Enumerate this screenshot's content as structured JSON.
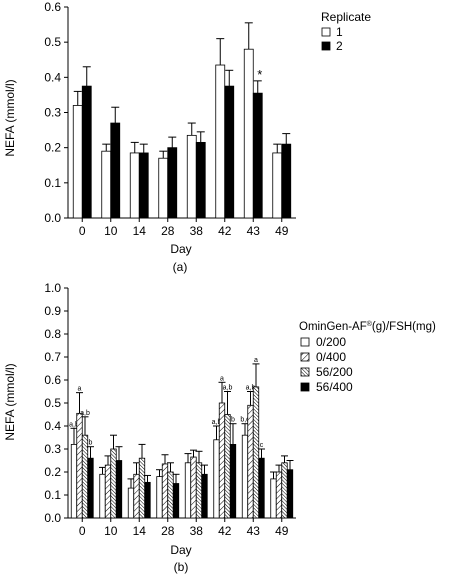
{
  "chart_data": [
    {
      "type": "bar",
      "ylabel": "NEFA (mmol/l)",
      "xlabel": "Day",
      "caption": "(a)",
      "ylim": [
        0,
        0.6
      ],
      "yticks": [
        "0.0",
        "0.1",
        "0.2",
        "0.3",
        "0.4",
        "0.5",
        "0.6"
      ],
      "categories": [
        "0",
        "10",
        "14",
        "28",
        "38",
        "42",
        "43",
        "49"
      ],
      "legend": {
        "title": "Replicate",
        "placement": "right"
      },
      "series": [
        {
          "name": "1",
          "fill": "#ffffff",
          "values": [
            0.32,
            0.19,
            0.185,
            0.17,
            0.235,
            0.435,
            0.48,
            0.185
          ],
          "errors": [
            0.04,
            0.02,
            0.03,
            0.02,
            0.035,
            0.075,
            0.075,
            0.025
          ]
        },
        {
          "name": "2",
          "fill": "#000000",
          "values": [
            0.375,
            0.27,
            0.185,
            0.2,
            0.215,
            0.375,
            0.355,
            0.21
          ],
          "errors": [
            0.055,
            0.045,
            0.025,
            0.03,
            0.03,
            0.045,
            0.035,
            0.03
          ]
        }
      ],
      "annotations": [
        {
          "category": "43",
          "series": 1,
          "text": "*"
        }
      ]
    },
    {
      "type": "bar",
      "ylabel": "NEFA (mmol/l)",
      "xlabel": "Day",
      "caption": "(b)",
      "ylim": [
        0,
        1.0
      ],
      "yticks": [
        "0.0",
        "0.1",
        "0.2",
        "0.3",
        "0.4",
        "0.5",
        "0.6",
        "0.7",
        "0.8",
        "0.9",
        "1.0"
      ],
      "categories": [
        "0",
        "10",
        "14",
        "28",
        "38",
        "42",
        "43",
        "49"
      ],
      "legend": {
        "title": "OminGen-AF",
        "title_sup": "®",
        "title_rest": "(g)/FSH(mg)",
        "placement": "right"
      },
      "series": [
        {
          "name": "0/200",
          "pattern": "white",
          "values": [
            0.32,
            0.19,
            0.13,
            0.18,
            0.24,
            0.34,
            0.36,
            0.17
          ],
          "errors": [
            0.07,
            0.03,
            0.04,
            0.03,
            0.04,
            0.06,
            0.05,
            0.03
          ]
        },
        {
          "name": "0/400",
          "pattern": "hatch-wide",
          "values": [
            0.455,
            0.23,
            0.19,
            0.235,
            0.265,
            0.5,
            0.49,
            0.2
          ],
          "errors": [
            0.09,
            0.04,
            0.05,
            0.04,
            0.03,
            0.09,
            0.06,
            0.03
          ]
        },
        {
          "name": "56/200",
          "pattern": "hatch-dense",
          "values": [
            0.36,
            0.3,
            0.26,
            0.2,
            0.24,
            0.45,
            0.57,
            0.24
          ],
          "errors": [
            0.08,
            0.06,
            0.06,
            0.04,
            0.05,
            0.1,
            0.1,
            0.03
          ]
        },
        {
          "name": "56/400",
          "pattern": "black",
          "values": [
            0.26,
            0.25,
            0.155,
            0.15,
            0.19,
            0.32,
            0.26,
            0.21
          ],
          "errors": [
            0.05,
            0.06,
            0.03,
            0.04,
            0.04,
            0.09,
            0.04,
            0.04
          ]
        }
      ],
      "annotations": [
        {
          "category": "0",
          "series": 0,
          "text": "a,b"
        },
        {
          "category": "0",
          "series": 1,
          "text": "a"
        },
        {
          "category": "0",
          "series": 2,
          "text": "a,b"
        },
        {
          "category": "0",
          "series": 3,
          "text": "b"
        },
        {
          "category": "42",
          "series": 0,
          "text": "a,b"
        },
        {
          "category": "42",
          "series": 1,
          "text": "a"
        },
        {
          "category": "42",
          "series": 2,
          "text": "a,b"
        },
        {
          "category": "42",
          "series": 3,
          "text": "b"
        },
        {
          "category": "43",
          "series": 0,
          "text": "b,c"
        },
        {
          "category": "43",
          "series": 1,
          "text": "a,b"
        },
        {
          "category": "43",
          "series": 2,
          "text": "a"
        },
        {
          "category": "43",
          "series": 3,
          "text": "c"
        }
      ]
    }
  ]
}
